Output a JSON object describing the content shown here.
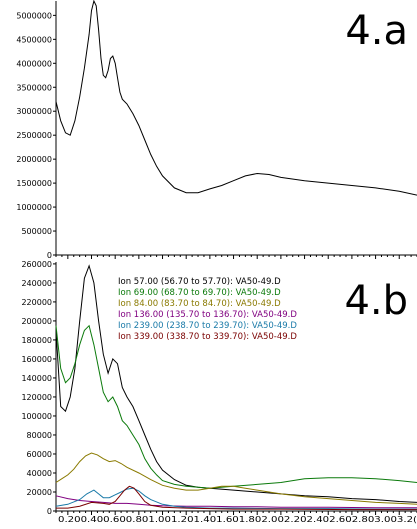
{
  "chart_data": [
    {
      "type": "line",
      "title": "4.a",
      "xlim": [
        0.1,
        3.15
      ],
      "ylim": [
        0,
        5300000
      ],
      "y_ticks": [
        0,
        500000,
        1000000,
        1500000,
        2000000,
        2500000,
        3000000,
        3500000,
        4000000,
        4500000,
        5000000
      ],
      "y_tick_labels": [
        "0",
        "500000",
        "1000000",
        "1500000",
        "2000000",
        "2500000",
        "3000000",
        "3500000",
        "4000000",
        "4500000",
        "5000000"
      ],
      "series": [
        {
          "color": "#000000",
          "x": [
            0.1,
            0.14,
            0.18,
            0.22,
            0.26,
            0.3,
            0.34,
            0.38,
            0.4,
            0.42,
            0.44,
            0.46,
            0.48,
            0.5,
            0.52,
            0.54,
            0.56,
            0.58,
            0.6,
            0.62,
            0.64,
            0.66,
            0.7,
            0.75,
            0.8,
            0.85,
            0.9,
            0.95,
            1.0,
            1.1,
            1.2,
            1.3,
            1.4,
            1.5,
            1.6,
            1.7,
            1.8,
            1.9,
            2.0,
            2.2,
            2.4,
            2.6,
            2.8,
            3.0,
            3.15
          ],
          "y": [
            3200000,
            2800000,
            2550000,
            2500000,
            2800000,
            3300000,
            3900000,
            4600000,
            5100000,
            5300000,
            5200000,
            4700000,
            4100000,
            3750000,
            3700000,
            3850000,
            4100000,
            4150000,
            4000000,
            3700000,
            3400000,
            3250000,
            3150000,
            2950000,
            2700000,
            2400000,
            2100000,
            1850000,
            1650000,
            1400000,
            1300000,
            1300000,
            1380000,
            1450000,
            1550000,
            1650000,
            1700000,
            1680000,
            1620000,
            1550000,
            1500000,
            1450000,
            1400000,
            1330000,
            1250000
          ]
        }
      ]
    },
    {
      "type": "line",
      "title": "4.b",
      "xlim": [
        0.1,
        3.15
      ],
      "ylim": [
        0,
        262000
      ],
      "y_ticks": [
        0,
        20000,
        40000,
        60000,
        80000,
        100000,
        120000,
        140000,
        160000,
        180000,
        200000,
        220000,
        240000,
        260000
      ],
      "y_tick_labels": [
        "0",
        "20000",
        "40000",
        "60000",
        "80000",
        "100000",
        "120000",
        "140000",
        "160000",
        "180000",
        "200000",
        "220000",
        "240000",
        "260000"
      ],
      "x_ticks": [
        0.2,
        0.4,
        0.6,
        0.8,
        1.0,
        1.2,
        1.4,
        1.6,
        1.8,
        2.0,
        2.2,
        2.4,
        2.6,
        2.8,
        3.0
      ],
      "x_tick_labels": [
        "0.20",
        "0.40",
        "0.60",
        "0.80",
        "1.00",
        "1.20",
        "1.40",
        "1.60",
        "1.80",
        "2.00",
        "2.20",
        "2.40",
        "2.60",
        "2.80",
        "3.00"
      ],
      "x_tick_label_row": "0.200.400.600.801.001.201.401.601.802.002.202.402.602.803.003.2(",
      "series": [
        {
          "name": "Ion 57.00 (56.70 to 57.70): VA50-49.D",
          "color": "#000000",
          "x": [
            0.1,
            0.14,
            0.18,
            0.22,
            0.26,
            0.3,
            0.34,
            0.38,
            0.42,
            0.46,
            0.5,
            0.54,
            0.58,
            0.62,
            0.66,
            0.7,
            0.75,
            0.8,
            0.85,
            0.9,
            0.95,
            1.0,
            1.1,
            1.2,
            1.3,
            1.4,
            1.6,
            1.8,
            2.0,
            2.2,
            2.4,
            2.6,
            2.8,
            3.0,
            3.15
          ],
          "y": [
            190000,
            110000,
            105000,
            120000,
            150000,
            200000,
            245000,
            258000,
            240000,
            200000,
            165000,
            145000,
            160000,
            155000,
            130000,
            120000,
            110000,
            95000,
            80000,
            65000,
            52000,
            43000,
            33000,
            27000,
            25000,
            24000,
            22000,
            20000,
            18000,
            16000,
            15000,
            13000,
            12000,
            10000,
            9000
          ]
        },
        {
          "name": "Ion 69.00 (68.70 to 69.70): VA50-49.D",
          "color": "#0b7a0b",
          "x": [
            0.1,
            0.14,
            0.18,
            0.22,
            0.26,
            0.3,
            0.34,
            0.38,
            0.42,
            0.46,
            0.5,
            0.54,
            0.58,
            0.62,
            0.66,
            0.7,
            0.75,
            0.8,
            0.85,
            0.9,
            0.95,
            1.0,
            1.1,
            1.2,
            1.3,
            1.4,
            1.6,
            1.8,
            2.0,
            2.2,
            2.4,
            2.6,
            2.8,
            3.0,
            3.15
          ],
          "y": [
            195000,
            150000,
            135000,
            140000,
            155000,
            175000,
            190000,
            195000,
            175000,
            150000,
            125000,
            115000,
            120000,
            110000,
            95000,
            90000,
            80000,
            70000,
            55000,
            45000,
            38000,
            32000,
            28000,
            26000,
            25000,
            24000,
            26000,
            28000,
            30000,
            34000,
            35000,
            35000,
            34000,
            32000,
            30000
          ]
        },
        {
          "name": "Ion 84.00 (83.70 to 84.70): VA50-49.D",
          "color": "#8a7a00",
          "x": [
            0.1,
            0.15,
            0.2,
            0.25,
            0.3,
            0.35,
            0.4,
            0.45,
            0.5,
            0.55,
            0.6,
            0.65,
            0.7,
            0.8,
            0.9,
            1.0,
            1.1,
            1.2,
            1.3,
            1.4,
            1.5,
            1.6,
            1.7,
            1.8,
            2.0,
            2.2,
            2.4,
            2.6,
            2.8,
            3.0,
            3.15
          ],
          "y": [
            30000,
            34000,
            38000,
            44000,
            52000,
            58000,
            61000,
            59000,
            55000,
            52000,
            53000,
            50000,
            46000,
            40000,
            33000,
            27000,
            24000,
            22000,
            22000,
            24000,
            26000,
            26000,
            24000,
            22000,
            18000,
            15000,
            13000,
            11000,
            9000,
            8000,
            7000
          ]
        },
        {
          "name": "Ion 136.00 (135.70 to 136.70): VA50-49.D",
          "color": "#800080",
          "x": [
            0.1,
            0.2,
            0.3,
            0.4,
            0.5,
            0.6,
            0.7,
            0.8,
            0.9,
            1.0,
            1.2,
            1.4,
            1.6,
            1.8,
            2.0,
            2.4,
            2.8,
            3.15
          ],
          "y": [
            16000,
            13000,
            11000,
            10000,
            9000,
            8000,
            8000,
            7000,
            6000,
            5500,
            5000,
            5000,
            4500,
            4500,
            4000,
            4000,
            3500,
            3500
          ]
        },
        {
          "name": "Ion 239.00 (238.70 to 239.70): VA50-49.D",
          "color": "#1a7aa8",
          "x": [
            0.1,
            0.2,
            0.3,
            0.36,
            0.42,
            0.46,
            0.5,
            0.55,
            0.6,
            0.65,
            0.7,
            0.75,
            0.8,
            0.85,
            0.9,
            1.0,
            1.1,
            1.2,
            1.4,
            1.6,
            2.0,
            2.4,
            2.8,
            3.15
          ],
          "y": [
            5000,
            7000,
            12000,
            18000,
            22000,
            18000,
            14000,
            14000,
            17000,
            20000,
            23000,
            24000,
            21000,
            16000,
            12000,
            7000,
            5000,
            4000,
            3000,
            3000,
            2500,
            2500,
            2000,
            2000
          ]
        },
        {
          "name": "Ion 339.00 (338.70 to 339.70): VA50-49.D",
          "color": "#7a0000",
          "x": [
            0.1,
            0.2,
            0.3,
            0.4,
            0.5,
            0.55,
            0.6,
            0.64,
            0.68,
            0.72,
            0.76,
            0.8,
            0.85,
            0.9,
            1.0,
            1.2,
            1.6,
            2.0,
            2.6,
            3.15
          ],
          "y": [
            3000,
            3000,
            5000,
            9000,
            8000,
            7000,
            10000,
            16000,
            22000,
            26000,
            24000,
            18000,
            10000,
            6000,
            4000,
            3000,
            2000,
            2000,
            1500,
            1500
          ]
        }
      ]
    }
  ]
}
